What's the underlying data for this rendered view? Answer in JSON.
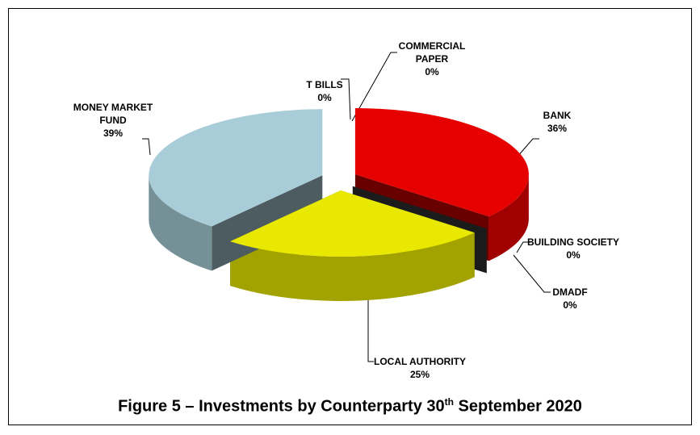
{
  "chart_data": {
    "type": "pie",
    "title": [
      "Figure 5 – Investments by Counterparty 30",
      "th",
      " September 2020"
    ],
    "categories": [
      "COMMERCIAL PAPER",
      "BANK",
      "BUILDING SOCIETY",
      "DMADF",
      "LOCAL AUTHORITY",
      "MONEY MARKET FUND",
      "T BILLS"
    ],
    "values": [
      0,
      36,
      0,
      0,
      25,
      39,
      0
    ],
    "value_labels": [
      "0%",
      "36%",
      "0%",
      "0%",
      "25%",
      "39%",
      "0%"
    ],
    "colors": [
      "#7f7f7f",
      "#e60000",
      "#4f6228",
      "#3c3c3c",
      "#e8e800",
      "#a9cdd8",
      "#bfbfbf"
    ]
  }
}
